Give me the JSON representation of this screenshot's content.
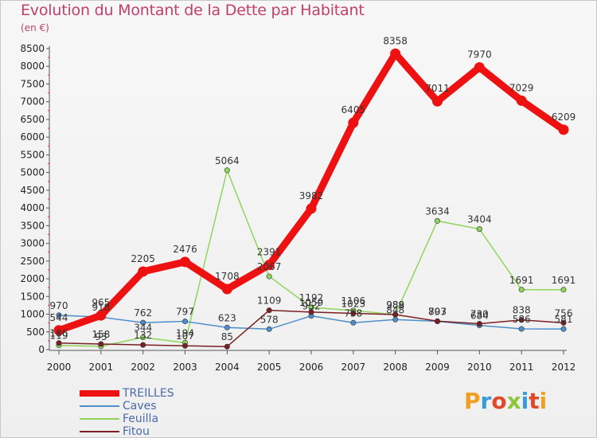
{
  "title": "Evolution du Montant de la Dette par Habitant",
  "subtitle": "(en €)",
  "logo": "Proxiti",
  "chart_data": {
    "type": "line",
    "title": "Evolution du Montant de la Dette par Habitant",
    "subtitle": "(en €)",
    "x": [
      "2000",
      "2001",
      "2002",
      "2003",
      "2004",
      "2005",
      "2006",
      "2007",
      "2008",
      "2009",
      "2010",
      "2011",
      "2012"
    ],
    "ylim": [
      0,
      8500
    ],
    "yticks": [
      0,
      500,
      1000,
      1500,
      2000,
      2500,
      3000,
      3500,
      4000,
      4500,
      5000,
      5500,
      6000,
      6500,
      7000,
      7500,
      8000,
      8500
    ],
    "grid": false,
    "legend_position": "bottom-left",
    "series": [
      {
        "name": "TREILLES",
        "color": "#ee1111",
        "width": 9,
        "values": [
          544,
          965,
          2205,
          2476,
          1708,
          2391,
          3982,
          6405,
          8358,
          7011,
          7970,
          7029,
          6209
        ]
      },
      {
        "name": "Caves",
        "color": "#4e8fc9",
        "width": 1.5,
        "values": [
          970,
          918,
          762,
          797,
          623,
          578,
          952,
          758,
          848,
          797,
          684,
          586,
          581
        ]
      },
      {
        "name": "Feuilla",
        "color": "#8ed65b",
        "width": 1.5,
        "values": [
          119,
          93,
          344,
          194,
          5064,
          2067,
          1192,
          1106,
          988,
          3634,
          3404,
          1691,
          1691
        ]
      },
      {
        "name": "Fitou",
        "color": "#7a1f23",
        "width": 1.5,
        "values": [
          186,
          158,
          132,
          107,
          85,
          1109,
          1059,
          1023,
          989,
          803,
          730,
          838,
          756
        ]
      }
    ]
  }
}
